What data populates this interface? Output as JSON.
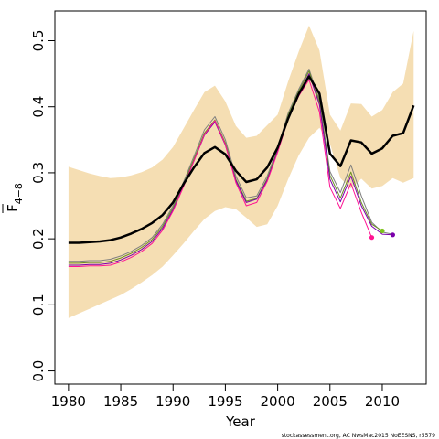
{
  "chart_data": {
    "type": "line",
    "title": "",
    "xlabel": "Year",
    "ylabel": {
      "main": "F",
      "subscript": "4−8"
    },
    "xlim": [
      1978.7,
      2014.2
    ],
    "ylim": [
      -0.02,
      0.545
    ],
    "x_ticks": [
      1980,
      1985,
      1990,
      1995,
      2000,
      2005,
      2010
    ],
    "y_ticks": [
      0.0,
      0.1,
      0.2,
      0.3,
      0.4,
      0.5
    ],
    "y_tick_labels": [
      "0.0",
      "0.1",
      "0.2",
      "0.3",
      "0.4",
      "0.5"
    ],
    "grid": false,
    "legend": "none",
    "footnote": "stockassessment.org, AC NwsMac2015 NoEESNS, r5579",
    "band": {
      "color": "#f5deb3",
      "x": [
        1980,
        1981,
        1982,
        1983,
        1984,
        1985,
        1986,
        1987,
        1988,
        1989,
        1990,
        1991,
        1992,
        1993,
        1994,
        1995,
        1996,
        1997,
        1998,
        1999,
        2000,
        2001,
        2002,
        2003,
        2004,
        2005,
        2006,
        2007,
        2008,
        2009,
        2010,
        2011,
        2012,
        2013
      ],
      "lower": [
        0.08,
        0.087,
        0.094,
        0.101,
        0.108,
        0.115,
        0.124,
        0.134,
        0.145,
        0.158,
        0.175,
        0.193,
        0.212,
        0.23,
        0.242,
        0.248,
        0.245,
        0.232,
        0.218,
        0.222,
        0.25,
        0.29,
        0.326,
        0.353,
        0.368,
        0.344,
        0.292,
        0.276,
        0.291,
        0.276,
        0.28,
        0.292,
        0.285,
        0.292
      ],
      "upper": [
        0.309,
        0.304,
        0.299,
        0.295,
        0.292,
        0.293,
        0.296,
        0.301,
        0.308,
        0.32,
        0.339,
        0.367,
        0.395,
        0.422,
        0.432,
        0.408,
        0.371,
        0.353,
        0.356,
        0.372,
        0.388,
        0.438,
        0.483,
        0.523,
        0.485,
        0.388,
        0.364,
        0.405,
        0.404,
        0.385,
        0.395,
        0.422,
        0.435,
        0.515
      ]
    },
    "series": [
      {
        "color": "#000000",
        "width": 2.5,
        "x": [
          1980,
          1981,
          1982,
          1983,
          1984,
          1985,
          1986,
          1987,
          1988,
          1989,
          1990,
          1991,
          1992,
          1993,
          1994,
          1995,
          1996,
          1997,
          1998,
          1999,
          2000,
          2001,
          2002,
          2003,
          2004,
          2005,
          2006,
          2007,
          2008,
          2009,
          2010,
          2011,
          2012,
          2013
        ],
        "y": [
          0.194,
          0.194,
          0.195,
          0.196,
          0.198,
          0.202,
          0.208,
          0.215,
          0.224,
          0.236,
          0.255,
          0.283,
          0.308,
          0.33,
          0.339,
          0.328,
          0.303,
          0.286,
          0.29,
          0.308,
          0.338,
          0.382,
          0.419,
          0.446,
          0.42,
          0.329,
          0.31,
          0.349,
          0.346,
          0.329,
          0.337,
          0.356,
          0.36,
          0.402
        ]
      },
      {
        "color": "#7f7f7f",
        "width": 1,
        "x": [
          1980,
          1981,
          1982,
          1983,
          1984,
          1985,
          1986,
          1987,
          1988,
          1989,
          1990,
          1991,
          1992,
          1993,
          1994,
          1995,
          1996,
          1997,
          1998,
          1999,
          2000,
          2001,
          2002,
          2003,
          2004,
          2005,
          2006,
          2007,
          2008,
          2009,
          2010,
          2011
        ],
        "y": [
          0.166,
          0.166,
          0.167,
          0.167,
          0.169,
          0.174,
          0.181,
          0.19,
          0.202,
          0.222,
          0.25,
          0.286,
          0.325,
          0.365,
          0.385,
          0.35,
          0.295,
          0.262,
          0.265,
          0.295,
          0.338,
          0.39,
          0.426,
          0.457,
          0.41,
          0.302,
          0.27,
          0.312,
          0.265,
          0.225,
          0.21,
          0.207
        ]
      },
      {
        "color": "#6b8e23",
        "width": 1,
        "x": [
          1980,
          1981,
          1982,
          1983,
          1984,
          1985,
          1986,
          1987,
          1988,
          1989,
          1990,
          1991,
          1992,
          1993,
          1994,
          1995,
          1996,
          1997,
          1998,
          1999,
          2000,
          2001,
          2002,
          2003,
          2004,
          2005,
          2006,
          2007,
          2008,
          2009,
          2010
        ],
        "y": [
          0.163,
          0.163,
          0.164,
          0.164,
          0.166,
          0.171,
          0.178,
          0.187,
          0.199,
          0.219,
          0.247,
          0.283,
          0.321,
          0.36,
          0.38,
          0.345,
          0.29,
          0.257,
          0.261,
          0.291,
          0.335,
          0.387,
          0.423,
          0.454,
          0.407,
          0.296,
          0.262,
          0.301,
          0.255,
          0.222,
          0.212
        ]
      },
      {
        "color": "#7b00ab",
        "width": 1,
        "x": [
          1980,
          1981,
          1982,
          1983,
          1984,
          1985,
          1986,
          1987,
          1988,
          1989,
          1990,
          1991,
          1992,
          1993,
          1994,
          1995,
          1996,
          1997,
          1998,
          1999,
          2000,
          2001,
          2002,
          2003,
          2004,
          2005,
          2006,
          2007,
          2008,
          2009,
          2010,
          2011
        ],
        "y": [
          0.16,
          0.16,
          0.161,
          0.161,
          0.163,
          0.168,
          0.175,
          0.184,
          0.196,
          0.216,
          0.244,
          0.28,
          0.318,
          0.357,
          0.377,
          0.342,
          0.288,
          0.255,
          0.26,
          0.289,
          0.333,
          0.384,
          0.42,
          0.45,
          0.403,
          0.29,
          0.256,
          0.295,
          0.25,
          0.219,
          0.207,
          0.206
        ]
      },
      {
        "color": "#ff1493",
        "width": 1,
        "x": [
          1980,
          1981,
          1982,
          1983,
          1984,
          1985,
          1986,
          1987,
          1988,
          1989,
          1990,
          1991,
          1992,
          1993,
          1994,
          1995,
          1996,
          1997,
          1998,
          1999,
          2000,
          2001,
          2002,
          2003,
          2004,
          2005,
          2006,
          2007,
          2008,
          2009
        ],
        "y": [
          0.158,
          0.158,
          0.159,
          0.159,
          0.16,
          0.165,
          0.172,
          0.181,
          0.193,
          0.213,
          0.242,
          0.279,
          0.318,
          0.358,
          0.379,
          0.343,
          0.285,
          0.25,
          0.255,
          0.287,
          0.331,
          0.381,
          0.416,
          0.441,
          0.392,
          0.278,
          0.246,
          0.284,
          0.24,
          0.202
        ]
      }
    ],
    "endpoints": [
      {
        "x": 2009,
        "y": 0.202,
        "color": "#ff1493"
      },
      {
        "x": 2010,
        "y": 0.212,
        "color": "#7fc31c"
      },
      {
        "x": 2011,
        "y": 0.206,
        "color": "#7b00ab"
      }
    ]
  }
}
